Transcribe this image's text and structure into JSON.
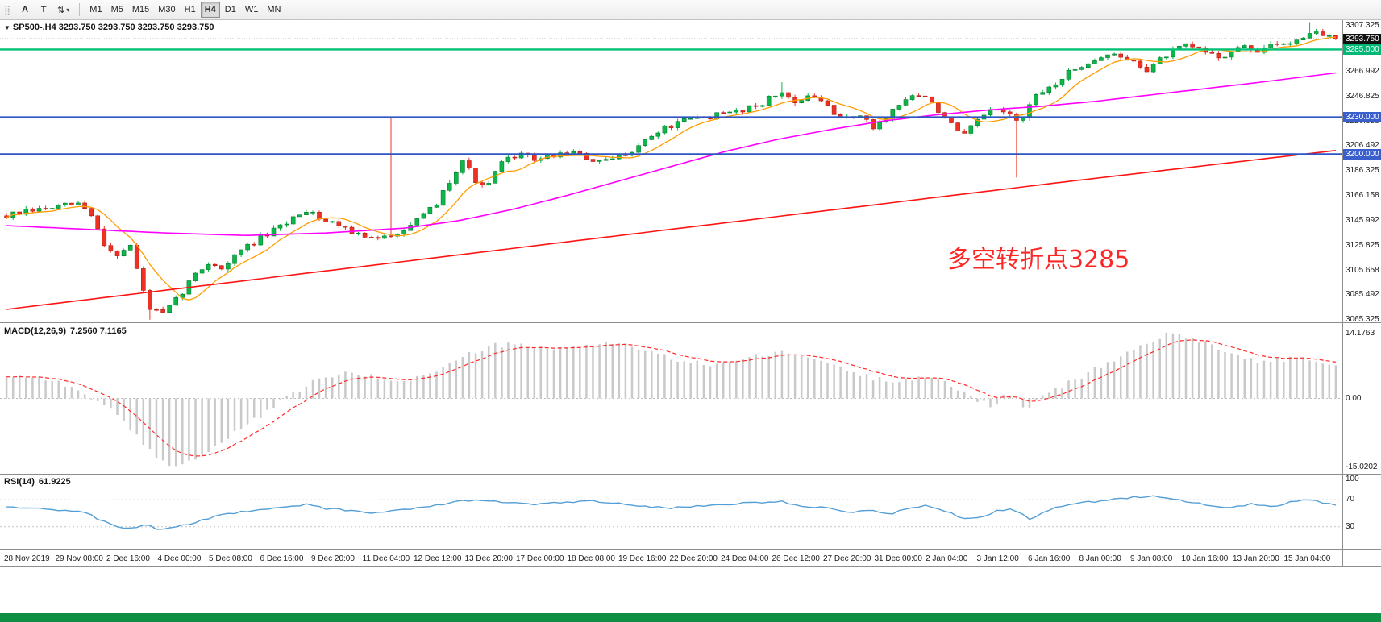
{
  "toolbar": {
    "grip_icon": "⣿",
    "icon_a": "A",
    "icon_t": "T",
    "tools_icon": "⇅",
    "caret_icon": "▾",
    "timeframes": [
      "M1",
      "M5",
      "M15",
      "M30",
      "H1",
      "H4",
      "D1",
      "W1",
      "MN"
    ],
    "selected_timeframe": "H4"
  },
  "chart": {
    "dropdown_icon": "▼",
    "header": "SP500-,H4  3293.750 3293.750 3293.750 3293.750",
    "annotation": {
      "text": "多空转折点3285",
      "color": "#ff2626"
    }
  },
  "macd_panel": {
    "label": "MACD(12,26,9)",
    "values": "7.2560 7.1165"
  },
  "rsi_panel": {
    "label": "RSI(14)",
    "value": "61.9225"
  },
  "status_bar_color": "#0e8f44",
  "chart_data": [
    {
      "type": "candlestick",
      "name": "SP500- H4 price",
      "bars": 205,
      "seed": 7,
      "last_close": 3293.75,
      "y_range": [
        3063.5,
        3309.5
      ],
      "axis_labels": [
        "3307.325",
        "3266.992",
        "3246.825",
        "3226.658",
        "3206.492",
        "3186.325",
        "3166.158",
        "3145.992",
        "3125.825",
        "3105.658",
        "3085.492",
        "3065.325"
      ],
      "axis_boxes": [
        {
          "value": "3293.750",
          "bg": "#111111"
        },
        {
          "value": "3285.000",
          "bg": "#00b876"
        },
        {
          "value": "3230.000",
          "bg": "#3a5fcd"
        },
        {
          "value": "3200.000",
          "bg": "#3a5fcd"
        }
      ],
      "hlines": [
        {
          "price": 3293.75,
          "color": "#9a9a9a",
          "width": 1,
          "dash": "1 2"
        },
        {
          "price": 3285,
          "color": "#00c176",
          "width": 2.4,
          "dash": null
        },
        {
          "price": 3230,
          "color": "#2e55c4",
          "width": 2.2,
          "dash": null
        },
        {
          "price": 3200,
          "color": "#2e55c4",
          "width": 2.2,
          "dash": null
        }
      ],
      "colors": {
        "up": "#0cb648",
        "up_border": "#067f2f",
        "down": "#ef3124",
        "down_border": "#b01e14"
      },
      "price_path_anchors": [
        [
          0,
          3150
        ],
        [
          0.02,
          3154
        ],
        [
          0.04,
          3157
        ],
        [
          0.055,
          3160
        ],
        [
          0.065,
          3148
        ],
        [
          0.075,
          3124
        ],
        [
          0.085,
          3118
        ],
        [
          0.093,
          3127
        ],
        [
          0.1,
          3098
        ],
        [
          0.108,
          3074
        ],
        [
          0.118,
          3070
        ],
        [
          0.128,
          3082
        ],
        [
          0.14,
          3100
        ],
        [
          0.152,
          3112
        ],
        [
          0.163,
          3107
        ],
        [
          0.175,
          3121
        ],
        [
          0.19,
          3131
        ],
        [
          0.205,
          3140
        ],
        [
          0.22,
          3152
        ],
        [
          0.228,
          3156
        ],
        [
          0.238,
          3146
        ],
        [
          0.252,
          3143
        ],
        [
          0.265,
          3134
        ],
        [
          0.28,
          3130
        ],
        [
          0.295,
          3138
        ],
        [
          0.31,
          3146
        ],
        [
          0.322,
          3158
        ],
        [
          0.333,
          3178
        ],
        [
          0.343,
          3196
        ],
        [
          0.352,
          3180
        ],
        [
          0.36,
          3170
        ],
        [
          0.37,
          3190
        ],
        [
          0.383,
          3200
        ],
        [
          0.398,
          3196
        ],
        [
          0.412,
          3199
        ],
        [
          0.425,
          3202
        ],
        [
          0.437,
          3196
        ],
        [
          0.45,
          3193
        ],
        [
          0.463,
          3199
        ],
        [
          0.477,
          3208
        ],
        [
          0.492,
          3220
        ],
        [
          0.508,
          3226
        ],
        [
          0.523,
          3230
        ],
        [
          0.538,
          3232
        ],
        [
          0.552,
          3236
        ],
        [
          0.567,
          3241
        ],
        [
          0.582,
          3250
        ],
        [
          0.595,
          3243
        ],
        [
          0.61,
          3247
        ],
        [
          0.625,
          3228
        ],
        [
          0.64,
          3233
        ],
        [
          0.652,
          3221
        ],
        [
          0.665,
          3234
        ],
        [
          0.68,
          3248
        ],
        [
          0.695,
          3244
        ],
        [
          0.708,
          3226
        ],
        [
          0.72,
          3214
        ],
        [
          0.733,
          3230
        ],
        [
          0.748,
          3238
        ],
        [
          0.762,
          3225
        ],
        [
          0.773,
          3245
        ],
        [
          0.788,
          3257
        ],
        [
          0.802,
          3268
        ],
        [
          0.815,
          3276
        ],
        [
          0.83,
          3281
        ],
        [
          0.843,
          3277
        ],
        [
          0.858,
          3269
        ],
        [
          0.872,
          3280
        ],
        [
          0.887,
          3288
        ],
        [
          0.9,
          3284
        ],
        [
          0.915,
          3279
        ],
        [
          0.928,
          3287
        ],
        [
          0.942,
          3284
        ],
        [
          0.955,
          3289
        ],
        [
          0.968,
          3292
        ],
        [
          0.982,
          3300
        ],
        [
          0.992,
          3296
        ],
        [
          1,
          3293.75
        ]
      ],
      "wick_events": [
        {
          "f": 0.108,
          "low": 3065.6
        },
        {
          "f": 0.29,
          "high": 3229
        },
        {
          "f": 0.585,
          "high": 3258.5
        },
        {
          "f": 0.762,
          "low": 3181
        },
        {
          "f": 0.982,
          "high": 3307.3
        }
      ],
      "overlays": {
        "fast": {
          "name": "MA-fast",
          "color": "#ff9c00",
          "period": 8
        },
        "mid": {
          "name": "MA-mid",
          "color": "#ff00ff",
          "anchors": [
            [
              0,
              3142
            ],
            [
              0.06,
              3139
            ],
            [
              0.12,
              3136
            ],
            [
              0.18,
              3134
            ],
            [
              0.24,
              3136
            ],
            [
              0.3,
              3140
            ],
            [
              0.34,
              3146
            ],
            [
              0.38,
              3155
            ],
            [
              0.42,
              3166
            ],
            [
              0.46,
              3178
            ],
            [
              0.5,
              3190
            ],
            [
              0.54,
              3202
            ],
            [
              0.58,
              3212
            ],
            [
              0.62,
              3220
            ],
            [
              0.66,
              3227
            ],
            [
              0.7,
              3232
            ],
            [
              0.74,
              3236
            ],
            [
              0.78,
              3239
            ],
            [
              0.82,
              3243
            ],
            [
              0.86,
              3248
            ],
            [
              0.9,
              3253
            ],
            [
              0.94,
              3258
            ],
            [
              0.97,
              3262
            ],
            [
              1,
              3266
            ]
          ]
        },
        "slow": {
          "name": "MA-slow",
          "color": "#ff1414",
          "anchors": [
            [
              0,
              3074
            ],
            [
              0.2,
              3100
            ],
            [
              0.4,
              3126
            ],
            [
              0.6,
              3152
            ],
            [
              0.8,
              3178
            ],
            [
              1,
              3203
            ]
          ]
        }
      },
      "x_labels": [
        "28 Nov 2019",
        "29 Nov 08:00",
        "2 Dec 16:00",
        "4 Dec 00:00",
        "5 Dec 08:00",
        "6 Dec 16:00",
        "9 Dec 20:00",
        "11 Dec 04:00",
        "12 Dec 12:00",
        "13 Dec 20:00",
        "17 Dec 00:00",
        "18 Dec 08:00",
        "19 Dec 16:00",
        "22 Dec 20:00",
        "24 Dec 04:00",
        "26 Dec 12:00",
        "27 Dec 20:00",
        "31 Dec 00:00",
        "2 Jan 04:00",
        "3 Jan 12:00",
        "6 Jan 16:00",
        "8 Jan 00:00",
        "9 Jan 08:00",
        "10 Jan 16:00",
        "13 Jan 20:00",
        "15 Jan 04:00"
      ]
    },
    {
      "type": "bar",
      "name": "MACD(12,26,9)",
      "seed": 99,
      "y_range": [
        -16.5,
        16.5
      ],
      "axis_labels": [
        "14.1763",
        "0.00",
        "-15.0202"
      ],
      "axis_values": [
        14.1763,
        0,
        -15.0202
      ],
      "current_macd": 7.256,
      "current_signal": 7.1165,
      "hist_color": "#c9c9c9",
      "signal_color": "#ff2a2a",
      "anchors": [
        [
          0,
          5
        ],
        [
          0.03,
          4.5
        ],
        [
          0.06,
          1
        ],
        [
          0.08,
          -3
        ],
        [
          0.1,
          -9
        ],
        [
          0.115,
          -13.5
        ],
        [
          0.13,
          -14.8
        ],
        [
          0.15,
          -12
        ],
        [
          0.17,
          -8
        ],
        [
          0.19,
          -4
        ],
        [
          0.21,
          0
        ],
        [
          0.23,
          3.5
        ],
        [
          0.25,
          5.5
        ],
        [
          0.27,
          5
        ],
        [
          0.29,
          4
        ],
        [
          0.31,
          4.5
        ],
        [
          0.33,
          7
        ],
        [
          0.35,
          10
        ],
        [
          0.37,
          11.8
        ],
        [
          0.39,
          11.5
        ],
        [
          0.41,
          10.5
        ],
        [
          0.43,
          11.5
        ],
        [
          0.45,
          12.3
        ],
        [
          0.47,
          11.5
        ],
        [
          0.49,
          9.5
        ],
        [
          0.51,
          8
        ],
        [
          0.53,
          7.5
        ],
        [
          0.55,
          8.5
        ],
        [
          0.57,
          9.5
        ],
        [
          0.59,
          10
        ],
        [
          0.61,
          8.5
        ],
        [
          0.63,
          6.5
        ],
        [
          0.65,
          4.5
        ],
        [
          0.67,
          4
        ],
        [
          0.69,
          4.8
        ],
        [
          0.71,
          3
        ],
        [
          0.725,
          0.5
        ],
        [
          0.74,
          -1.5
        ],
        [
          0.755,
          1
        ],
        [
          0.768,
          -2.5
        ],
        [
          0.78,
          0.5
        ],
        [
          0.8,
          3.5
        ],
        [
          0.82,
          6.5
        ],
        [
          0.84,
          9.5
        ],
        [
          0.86,
          12.5
        ],
        [
          0.875,
          14.1
        ],
        [
          0.89,
          13.5
        ],
        [
          0.905,
          12
        ],
        [
          0.92,
          10
        ],
        [
          0.935,
          8.5
        ],
        [
          0.95,
          8
        ],
        [
          0.965,
          8.8
        ],
        [
          0.98,
          8.2
        ],
        [
          1,
          7.26
        ]
      ]
    },
    {
      "type": "line",
      "name": "RSI(14)",
      "seed": 123,
      "y_range": [
        0,
        100
      ],
      "levels": [
        70,
        30
      ],
      "axis_labels": [
        "100",
        "70",
        "30"
      ],
      "axis_values": [
        100,
        70,
        30
      ],
      "current": 61.9225,
      "color": "#549fd7",
      "anchors": [
        [
          0,
          60
        ],
        [
          0.02,
          58
        ],
        [
          0.04,
          55
        ],
        [
          0.06,
          50
        ],
        [
          0.075,
          36
        ],
        [
          0.085,
          30
        ],
        [
          0.095,
          27
        ],
        [
          0.105,
          33
        ],
        [
          0.115,
          26
        ],
        [
          0.13,
          30
        ],
        [
          0.15,
          42
        ],
        [
          0.17,
          50
        ],
        [
          0.19,
          55
        ],
        [
          0.21,
          60
        ],
        [
          0.225,
          63
        ],
        [
          0.24,
          57
        ],
        [
          0.26,
          54
        ],
        [
          0.28,
          50
        ],
        [
          0.3,
          56
        ],
        [
          0.32,
          61
        ],
        [
          0.34,
          68
        ],
        [
          0.36,
          70
        ],
        [
          0.38,
          65
        ],
        [
          0.4,
          63
        ],
        [
          0.42,
          66
        ],
        [
          0.44,
          68
        ],
        [
          0.46,
          64
        ],
        [
          0.48,
          60
        ],
        [
          0.5,
          58
        ],
        [
          0.52,
          61
        ],
        [
          0.54,
          63
        ],
        [
          0.56,
          65
        ],
        [
          0.58,
          68
        ],
        [
          0.6,
          61
        ],
        [
          0.62,
          57
        ],
        [
          0.635,
          51
        ],
        [
          0.65,
          55
        ],
        [
          0.663,
          48
        ],
        [
          0.677,
          56
        ],
        [
          0.69,
          62
        ],
        [
          0.705,
          54
        ],
        [
          0.718,
          44
        ],
        [
          0.73,
          42
        ],
        [
          0.745,
          53
        ],
        [
          0.758,
          56
        ],
        [
          0.77,
          40
        ],
        [
          0.785,
          56
        ],
        [
          0.8,
          63
        ],
        [
          0.82,
          68
        ],
        [
          0.84,
          72
        ],
        [
          0.86,
          76
        ],
        [
          0.875,
          71
        ],
        [
          0.89,
          67
        ],
        [
          0.905,
          61
        ],
        [
          0.92,
          57
        ],
        [
          0.935,
          64
        ],
        [
          0.95,
          59
        ],
        [
          0.965,
          66
        ],
        [
          0.98,
          70
        ],
        [
          1,
          61.9225
        ]
      ]
    }
  ]
}
